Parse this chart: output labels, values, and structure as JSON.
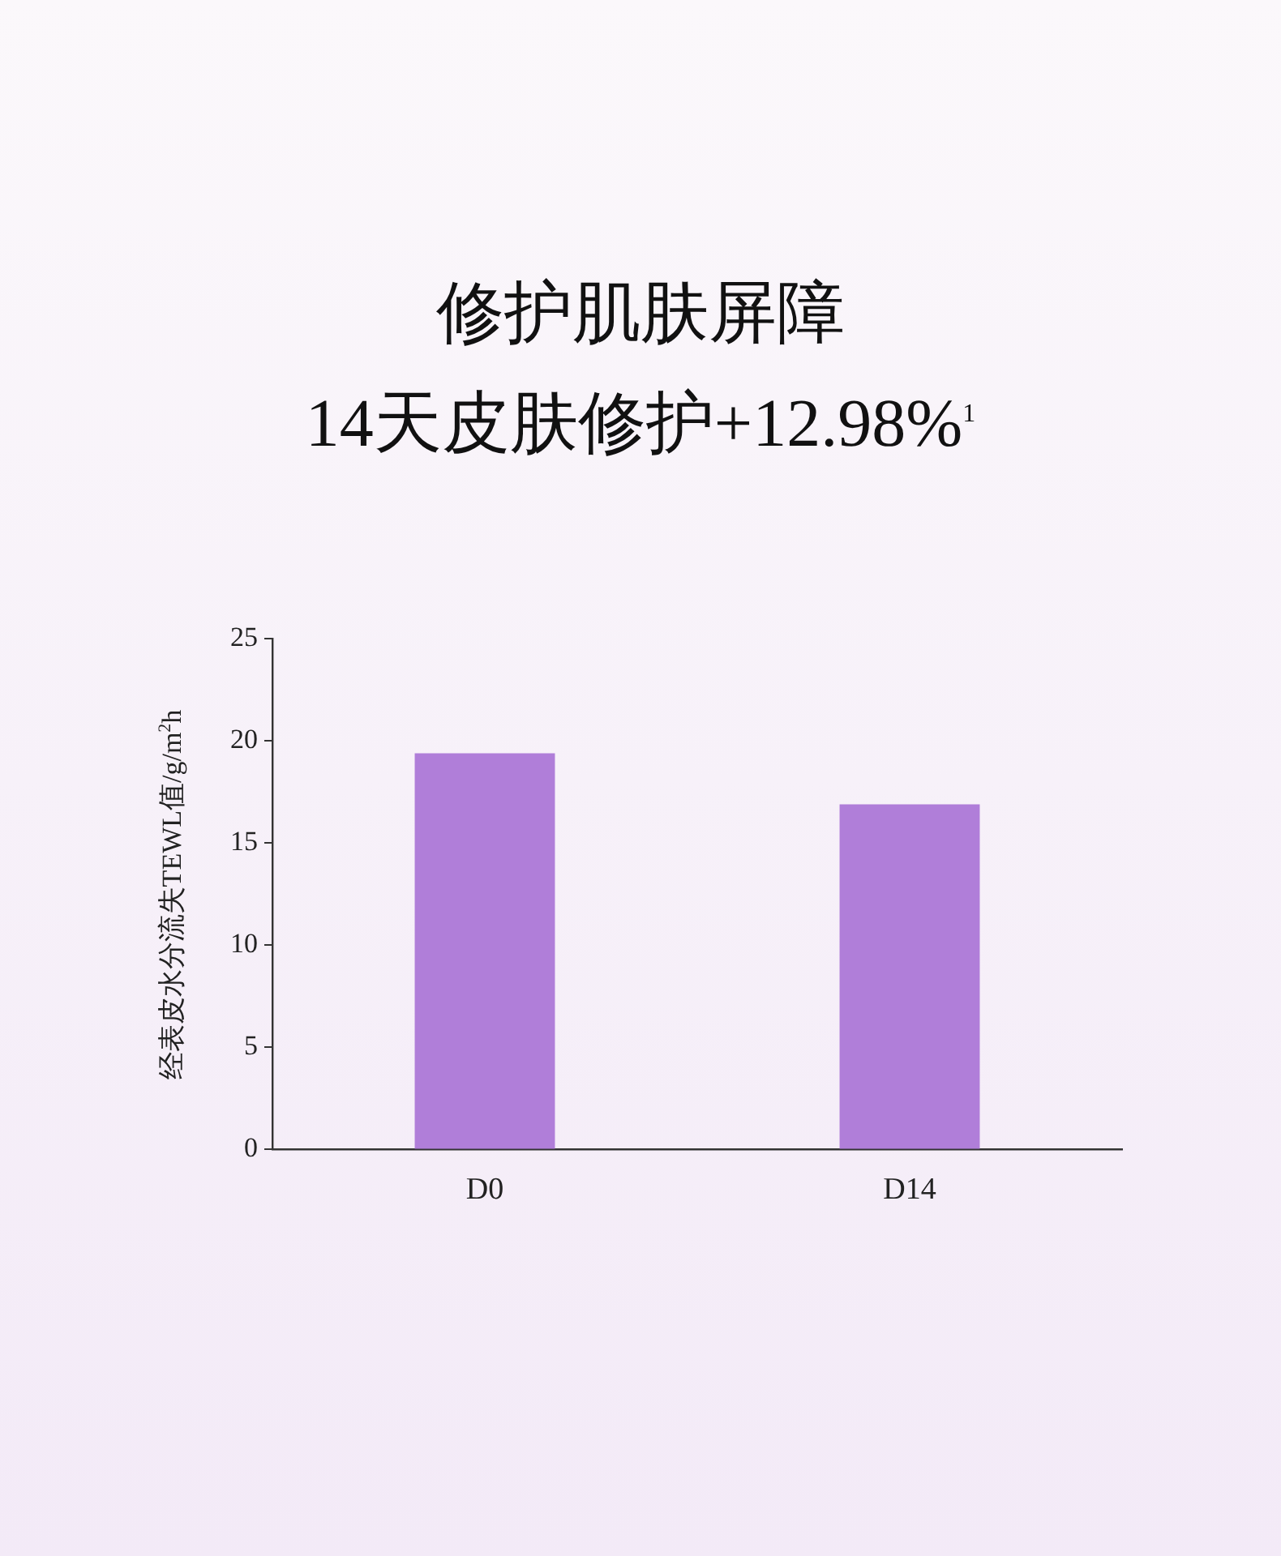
{
  "chart_data": {
    "type": "bar",
    "title": "修护肌肤屏障",
    "subtitle": "14天皮肤修护+12.98%$^{1}$",
    "ylabel": "经表皮水分流失TEWL值/g/m$^{2}$h",
    "categories": [
      "D0",
      "D14"
    ],
    "values": [
      19.4,
      16.9
    ],
    "color": "#b07ed9",
    "ylim": [
      0,
      25
    ],
    "yticks": [
      0,
      5,
      10,
      15,
      20,
      25
    ],
    "grid": false,
    "legend": false
  }
}
